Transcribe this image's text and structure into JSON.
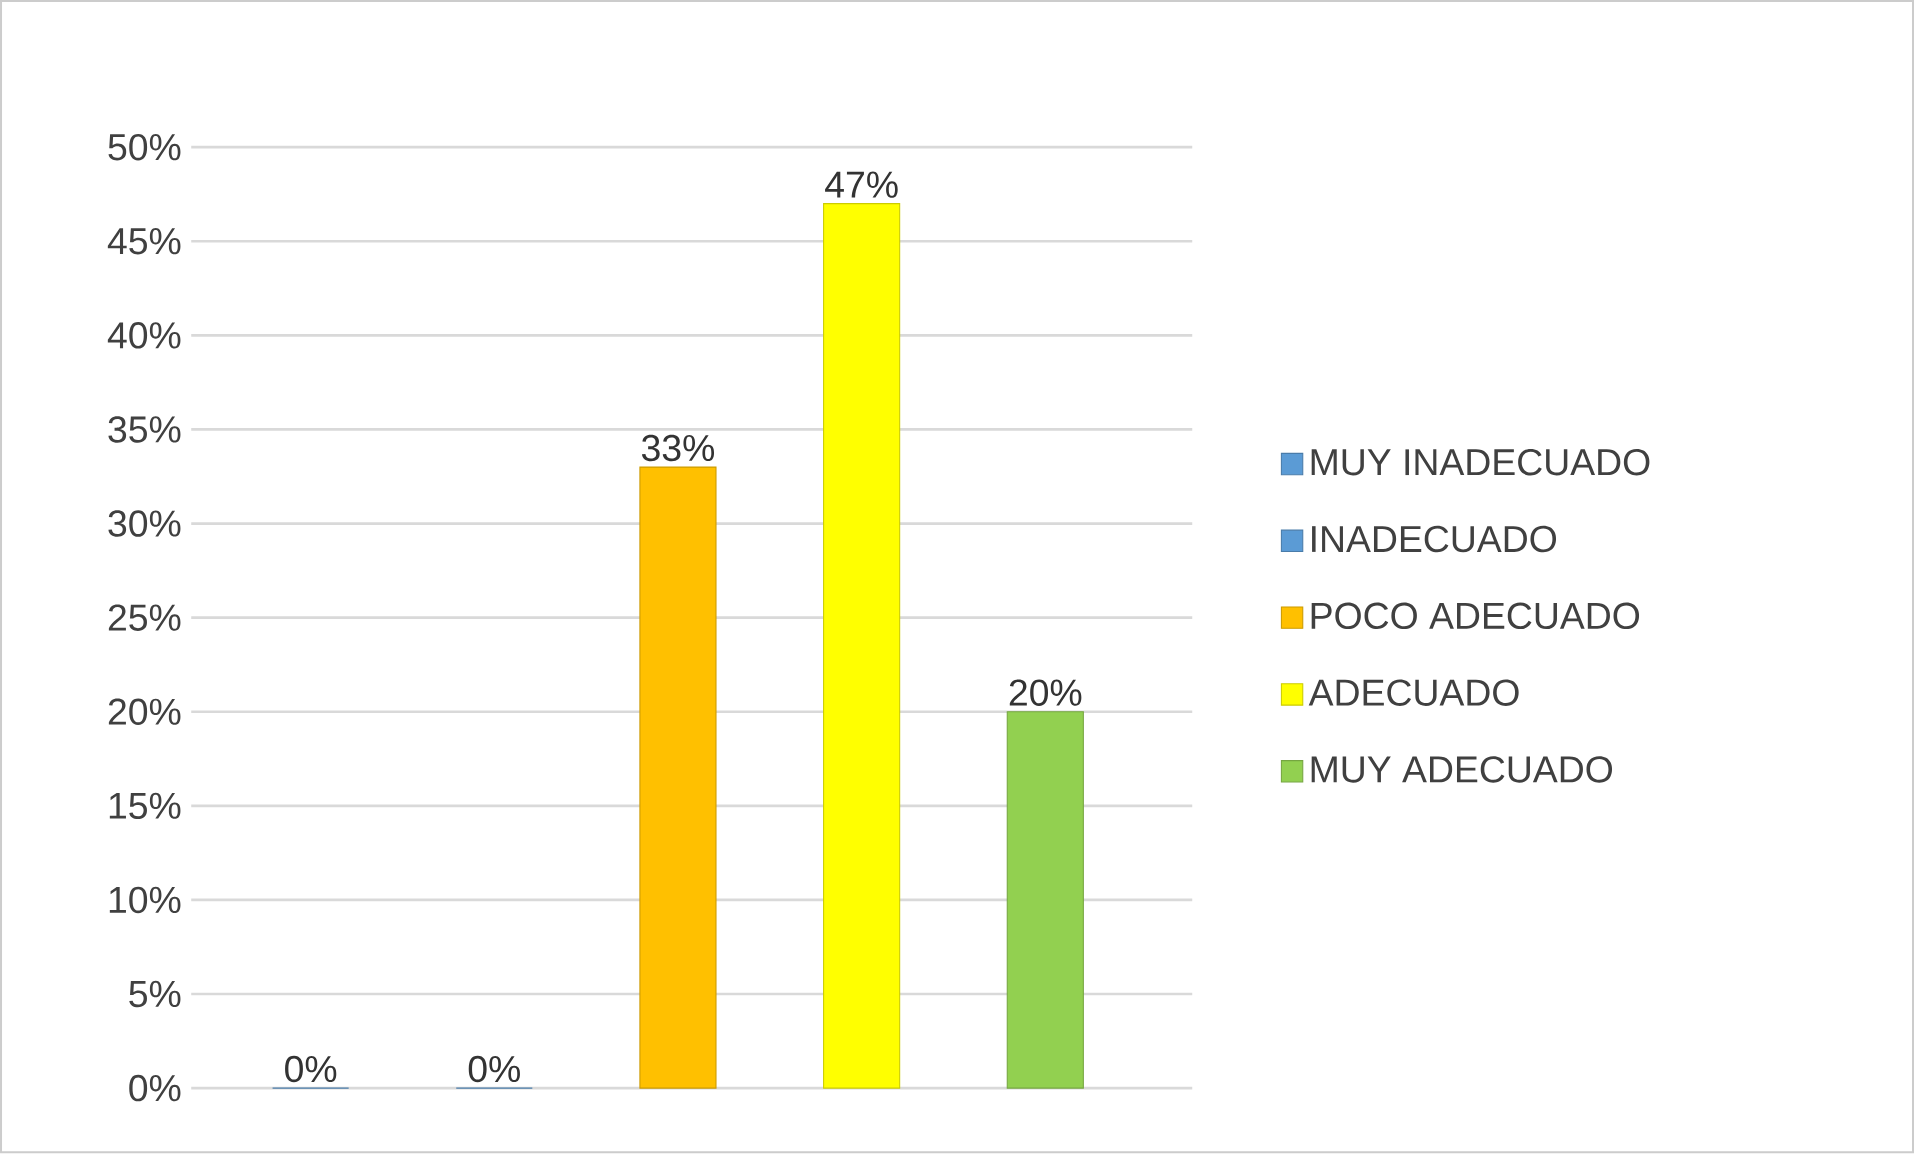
{
  "chart_data": {
    "type": "bar",
    "categories": [
      null,
      null,
      null,
      null,
      null
    ],
    "series": [
      {
        "name": "MUY INADECUADO",
        "color": "#5b9bd5",
        "values": [
          0,
          null,
          null,
          null,
          null
        ],
        "value_labels": [
          "0%",
          null,
          null,
          null,
          null
        ]
      },
      {
        "name": "INADECUADO",
        "color": "#5b9bd5",
        "values": [
          null,
          0,
          null,
          null,
          null
        ],
        "value_labels": [
          null,
          "0%",
          null,
          null,
          null
        ]
      },
      {
        "name": "POCO ADECUADO",
        "color": "#ffc000",
        "values": [
          null,
          null,
          33,
          null,
          null
        ],
        "value_labels": [
          null,
          null,
          "33%",
          null,
          null
        ]
      },
      {
        "name": "ADECUADO",
        "color": "#ffff00",
        "values": [
          null,
          null,
          null,
          47,
          null
        ],
        "value_labels": [
          null,
          null,
          null,
          "47%",
          null
        ]
      },
      {
        "name": "MUY ADECUADO",
        "color": "#92d050",
        "values": [
          null,
          null,
          null,
          null,
          20
        ],
        "value_labels": [
          null,
          null,
          null,
          null,
          "20%"
        ]
      }
    ],
    "ylim": [
      0,
      50
    ],
    "yticks": [
      {
        "value": 0,
        "label": "0%"
      },
      {
        "value": 5,
        "label": "5%"
      },
      {
        "value": 10,
        "label": "10%"
      },
      {
        "value": 15,
        "label": "15%"
      },
      {
        "value": 20,
        "label": "20%"
      },
      {
        "value": 25,
        "label": "25%"
      },
      {
        "value": 30,
        "label": "30%"
      },
      {
        "value": 35,
        "label": "35%"
      },
      {
        "value": 40,
        "label": "40%"
      },
      {
        "value": 45,
        "label": "45%"
      },
      {
        "value": 50,
        "label": "50%"
      }
    ],
    "grid": "y",
    "legend": "right"
  }
}
